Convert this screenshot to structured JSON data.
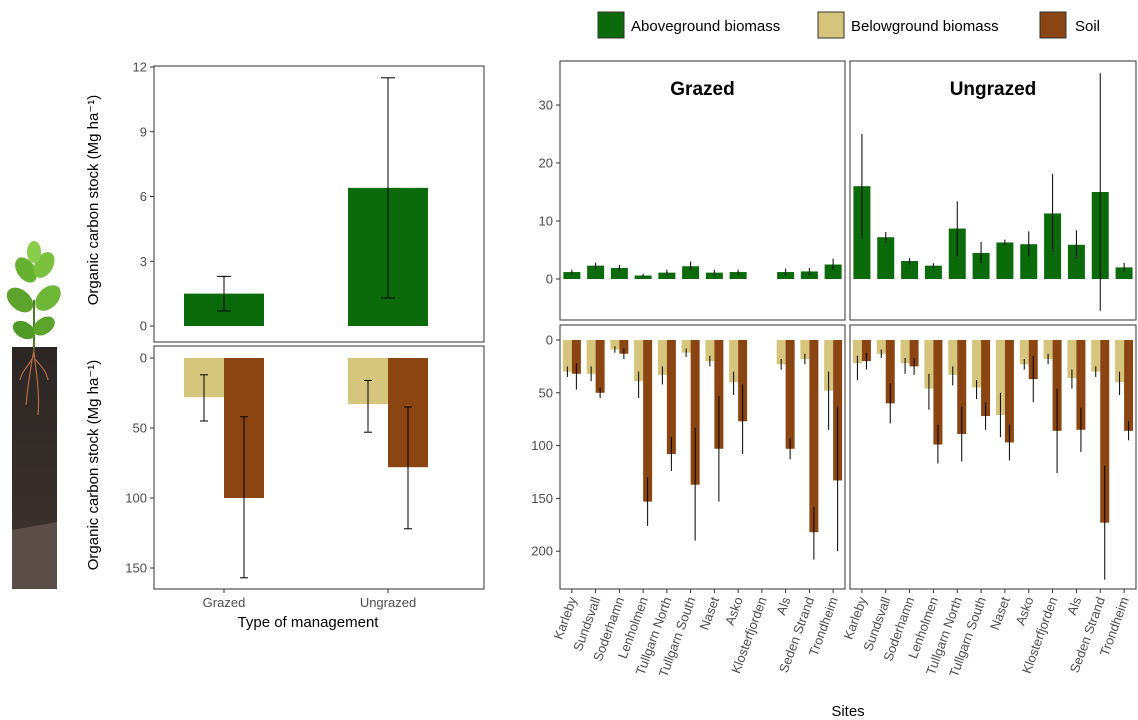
{
  "colors": {
    "aboveground": "#0b6b0b",
    "belowground": "#d6c57c",
    "soil": "#8b4513"
  },
  "legend": [
    {
      "key": "aboveground",
      "label": "Aboveground biomass"
    },
    {
      "key": "belowground",
      "label": "Belowground biomass"
    },
    {
      "key": "soil",
      "label": "Soil"
    }
  ],
  "left_ylabel_top": "Organic carbon stock (Mg ha⁻¹)",
  "left_ylabel_bottom": "Organic carbon stock (Mg ha⁻¹)",
  "left_xlabel": "Type of management",
  "right_xlabel": "Sites",
  "chart_data": [
    {
      "type": "bar",
      "panel": "left-top",
      "categories": [
        "Grazed",
        "Ungrazed"
      ],
      "series": [
        {
          "name": "Aboveground biomass",
          "key": "aboveground",
          "values": [
            1.5,
            6.4
          ],
          "err_low": [
            0.7,
            1.3
          ],
          "err_high": [
            2.3,
            11.5
          ]
        }
      ],
      "ylim": [
        0,
        12
      ],
      "yticks": [
        0,
        3,
        6,
        9,
        12
      ]
    },
    {
      "type": "bar",
      "panel": "left-bottom",
      "categories": [
        "Grazed",
        "Ungrazed"
      ],
      "series": [
        {
          "name": "Belowground biomass",
          "key": "belowground",
          "values": [
            28,
            33
          ],
          "err_low": [
            12,
            16
          ],
          "err_high": [
            45,
            53
          ]
        },
        {
          "name": "Soil",
          "key": "soil",
          "values": [
            100,
            78
          ],
          "err_low": [
            42,
            35
          ],
          "err_high": [
            157,
            122
          ]
        }
      ],
      "ylim": [
        0,
        165
      ],
      "yticks": [
        0,
        50,
        100,
        150
      ],
      "inverted": true
    },
    {
      "type": "bar",
      "panel": "sites-above",
      "facets": [
        "Grazed",
        "Ungrazed"
      ],
      "categories": [
        "Karleby",
        "Sundsvall",
        "Soderhamn",
        "Lenholmen",
        "Tullgarn North",
        "Tullgarn South",
        "Naset",
        "Asko",
        "Klosterfjorden",
        "Als",
        "Seden Strand",
        "Trondheim"
      ],
      "series": [
        {
          "name": "Aboveground biomass",
          "key": "aboveground",
          "facet": "Grazed",
          "values": [
            1.2,
            2.3,
            1.9,
            0.6,
            1.1,
            2.2,
            1.1,
            1.2,
            null,
            1.2,
            1.3,
            2.5
          ],
          "err_low": [
            0.8,
            1.8,
            1.4,
            0.3,
            0.6,
            1.5,
            0.6,
            0.8,
            null,
            0.6,
            0.7,
            1.6
          ],
          "err_high": [
            1.6,
            2.8,
            2.4,
            0.9,
            1.6,
            3.0,
            1.6,
            1.6,
            null,
            1.8,
            1.9,
            3.5
          ]
        },
        {
          "name": "Aboveground biomass",
          "key": "aboveground",
          "facet": "Ungrazed",
          "values": [
            16,
            7.2,
            3.1,
            2.3,
            8.7,
            4.5,
            6.3,
            6.0,
            11.3,
            5.9,
            15.0,
            2.0
          ],
          "err_low": [
            7,
            6.3,
            2.5,
            1.9,
            3.8,
            2.7,
            5.8,
            3.9,
            4.7,
            3.5,
            -5.5,
            1.3
          ],
          "err_high": [
            25,
            8.1,
            3.6,
            2.7,
            13.4,
            6.4,
            6.8,
            8.2,
            18.1,
            8.4,
            35.5,
            2.8
          ]
        }
      ],
      "ylim": [
        -5,
        37
      ],
      "yticks": [
        0,
        10,
        20,
        30
      ]
    },
    {
      "type": "bar",
      "panel": "sites-below",
      "facets": [
        "Grazed",
        "Ungrazed"
      ],
      "categories": [
        "Karleby",
        "Sundsvall",
        "Soderhamn",
        "Lenholmen",
        "Tullgarn North",
        "Tullgarn South",
        "Naset",
        "Asko",
        "Klosterfjorden",
        "Als",
        "Seden Strand",
        "Trondheim"
      ],
      "series": [
        {
          "name": "Belowground biomass",
          "key": "belowground",
          "facet": "Grazed",
          "values": [
            30,
            32,
            9,
            39,
            33,
            12,
            20,
            40,
            null,
            23,
            18,
            48
          ],
          "err_low": [
            25,
            25,
            6,
            30,
            25,
            8,
            15,
            30,
            null,
            18,
            13,
            30
          ],
          "err_high": [
            35,
            39,
            12,
            55,
            42,
            16,
            25,
            52,
            null,
            28,
            23,
            85
          ]
        },
        {
          "name": "Soil",
          "key": "soil",
          "facet": "Grazed",
          "values": [
            32,
            50,
            13,
            153,
            108,
            137,
            103,
            77,
            null,
            103,
            182,
            133
          ],
          "err_low": [
            22,
            45,
            8,
            130,
            92,
            83,
            53,
            42,
            null,
            93,
            158,
            63
          ],
          "err_high": [
            47,
            55,
            18,
            176,
            124,
            190,
            153,
            108,
            null,
            113,
            208,
            200
          ]
        },
        {
          "name": "Belowground biomass",
          "key": "belowground",
          "facet": "Ungrazed",
          "values": [
            22,
            13,
            22,
            46,
            33,
            45,
            71,
            23,
            18,
            36,
            30,
            40
          ],
          "err_low": [
            15,
            9,
            17,
            32,
            25,
            38,
            50,
            18,
            13,
            28,
            25,
            30
          ],
          "err_high": [
            38,
            17,
            32,
            66,
            43,
            56,
            92,
            28,
            23,
            46,
            35,
            52
          ]
        },
        {
          "name": "Soil",
          "key": "soil",
          "facet": "Ungrazed",
          "values": [
            20,
            60,
            25,
            99,
            89,
            72,
            97,
            37,
            86,
            85,
            173,
            86
          ],
          "err_low": [
            12,
            41,
            17,
            80,
            63,
            59,
            80,
            15,
            46,
            64,
            119,
            77
          ],
          "err_high": [
            28,
            79,
            33,
            117,
            115,
            85,
            114,
            59,
            126,
            106,
            227,
            95
          ]
        }
      ],
      "ylim": [
        0,
        235
      ],
      "yticks": [
        0,
        50,
        100,
        150,
        200
      ],
      "inverted": true
    }
  ]
}
